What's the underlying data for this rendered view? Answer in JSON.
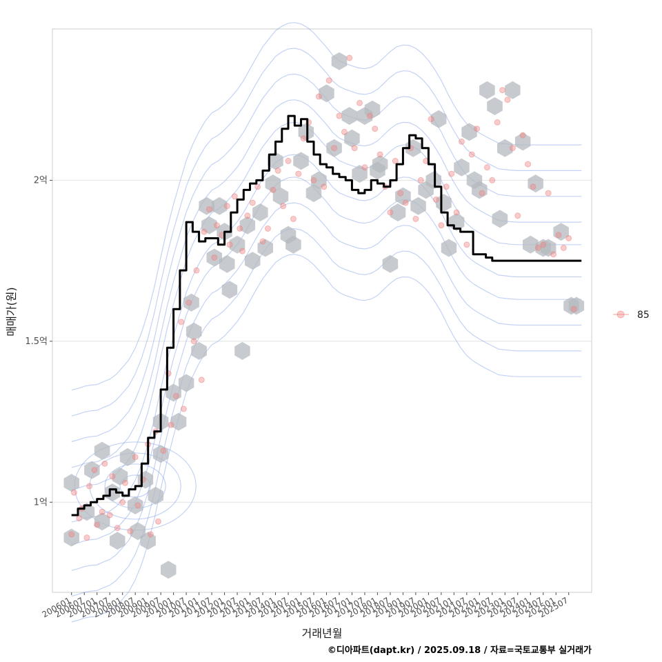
{
  "chart_data": {
    "type": "line",
    "title": "",
    "xlabel": "거래년월",
    "ylabel": "매매가(원)",
    "yunit": "억",
    "ylim": [
      0.72,
      2.47
    ],
    "yticks": [
      {
        "value": 1.0,
        "label": "1억"
      },
      {
        "value": 1.5,
        "label": "1.5억"
      },
      {
        "value": 2.0,
        "label": "2억"
      }
    ],
    "xlim": [
      2005.25,
      2026.4
    ],
    "xticks": [
      "200601",
      "200607",
      "200701",
      "200707",
      "200801",
      "200807",
      "200901",
      "200907",
      "201001",
      "201007",
      "201101",
      "201107",
      "201201",
      "201207",
      "201301",
      "201307",
      "201401",
      "201407",
      "201501",
      "201507",
      "201601",
      "201607",
      "201701",
      "201707",
      "201801",
      "201807",
      "201901",
      "201907",
      "202001",
      "202007",
      "202101",
      "202107",
      "202201",
      "202207",
      "202301",
      "202307",
      "202401",
      "202407",
      "202501",
      "202507"
    ],
    "legend": {
      "position": "right",
      "entries": [
        {
          "label": "85",
          "color": "#f08080"
        }
      ]
    },
    "caption": "©디아파트(dapt.kr) / 2025.09.18 / 자료=국토교통부 실거래가",
    "trend": {
      "name": "moving average",
      "x": [
        2006.0,
        2006.25,
        2006.5,
        2006.75,
        2007.0,
        2007.25,
        2007.5,
        2007.75,
        2008.0,
        2008.25,
        2008.5,
        2008.75,
        2009.0,
        2009.25,
        2009.5,
        2009.75,
        2010.0,
        2010.25,
        2010.5,
        2010.75,
        2011.0,
        2011.25,
        2011.5,
        2011.75,
        2012.0,
        2012.25,
        2012.5,
        2012.75,
        2013.0,
        2013.25,
        2013.5,
        2013.75,
        2014.0,
        2014.25,
        2014.5,
        2014.75,
        2015.0,
        2015.25,
        2015.5,
        2015.75,
        2016.0,
        2016.25,
        2016.5,
        2016.75,
        2017.0,
        2017.25,
        2017.5,
        2017.75,
        2018.0,
        2018.25,
        2018.5,
        2018.75,
        2019.0,
        2019.25,
        2019.5,
        2019.75,
        2020.0,
        2020.25,
        2020.5,
        2020.75,
        2021.0,
        2021.25,
        2021.5,
        2021.75,
        2022.0,
        2022.25,
        2022.5,
        2022.75,
        2023.0,
        2023.25,
        2023.5,
        2023.75,
        2024.0,
        2024.25,
        2024.5,
        2024.75,
        2025.0,
        2025.25,
        2025.5,
        2025.75,
        2026.0
      ],
      "y": [
        0.96,
        0.98,
        0.99,
        1.0,
        1.01,
        1.02,
        1.04,
        1.03,
        1.02,
        1.04,
        1.05,
        1.12,
        1.2,
        1.22,
        1.35,
        1.48,
        1.6,
        1.72,
        1.87,
        1.84,
        1.81,
        1.82,
        1.82,
        1.8,
        1.84,
        1.9,
        1.94,
        1.97,
        1.99,
        2.0,
        2.03,
        2.08,
        2.12,
        2.16,
        2.2,
        2.17,
        2.19,
        2.12,
        2.08,
        2.05,
        2.04,
        2.02,
        2.01,
        2.0,
        1.97,
        1.96,
        1.97,
        2.0,
        1.99,
        1.98,
        2.0,
        2.05,
        2.1,
        2.14,
        2.13,
        2.1,
        2.05,
        1.98,
        1.9,
        1.86,
        1.85,
        1.84,
        1.84,
        1.77,
        1.77,
        1.76,
        1.75,
        1.75,
        1.75,
        1.75,
        1.75,
        1.75,
        1.75,
        1.75,
        1.75,
        1.75,
        1.75,
        1.75,
        1.75,
        1.75,
        1.75
      ]
    },
    "points": {
      "series": "85",
      "x": [
        2006.0,
        2006.1,
        2006.3,
        2006.4,
        2006.6,
        2006.7,
        2006.9,
        2007.0,
        2007.2,
        2007.3,
        2007.5,
        2007.6,
        2007.8,
        2008.0,
        2008.1,
        2008.3,
        2008.5,
        2008.6,
        2008.8,
        2009.0,
        2009.1,
        2009.3,
        2009.4,
        2009.6,
        2009.8,
        2009.9,
        2010.1,
        2010.3,
        2010.4,
        2010.6,
        2010.8,
        2010.9,
        2011.1,
        2011.2,
        2011.4,
        2011.6,
        2011.7,
        2011.9,
        2012.1,
        2012.2,
        2012.4,
        2012.6,
        2012.7,
        2012.9,
        2013.1,
        2013.3,
        2013.5,
        2013.7,
        2013.9,
        2014.1,
        2014.3,
        2014.5,
        2014.7,
        2014.9,
        2015.1,
        2015.3,
        2015.5,
        2015.7,
        2015.9,
        2016.1,
        2016.3,
        2016.5,
        2016.7,
        2016.9,
        2017.1,
        2017.3,
        2017.5,
        2017.7,
        2017.9,
        2018.1,
        2018.3,
        2018.5,
        2018.7,
        2018.9,
        2019.1,
        2019.3,
        2019.5,
        2019.7,
        2019.9,
        2020.1,
        2020.3,
        2020.5,
        2020.7,
        2020.9,
        2021.1,
        2021.3,
        2021.5,
        2021.7,
        2021.9,
        2022.1,
        2022.3,
        2022.5,
        2022.7,
        2022.9,
        2023.1,
        2023.3,
        2023.5,
        2023.7,
        2023.9,
        2024.1,
        2024.3,
        2024.5,
        2024.7,
        2024.9,
        2025.1,
        2025.3,
        2025.5,
        2025.7
      ],
      "y": [
        0.9,
        1.03,
        0.95,
        0.98,
        0.89,
        1.05,
        1.1,
        0.93,
        0.97,
        1.12,
        0.96,
        1.08,
        0.92,
        1.0,
        1.06,
        0.91,
        1.14,
        0.99,
        1.07,
        1.18,
        0.9,
        1.22,
        0.94,
        1.16,
        1.4,
        1.24,
        1.33,
        1.56,
        1.29,
        1.62,
        1.5,
        1.72,
        1.38,
        1.84,
        1.91,
        1.76,
        1.86,
        1.83,
        1.92,
        1.8,
        1.95,
        1.85,
        1.78,
        1.89,
        1.93,
        1.98,
        1.81,
        1.85,
        1.97,
        2.03,
        1.92,
        2.06,
        1.88,
        2.02,
        2.13,
        2.18,
        2.0,
        2.26,
        1.98,
        2.31,
        2.1,
        2.2,
        2.15,
        2.38,
        2.1,
        2.24,
        2.04,
        2.2,
        2.16,
        2.08,
        1.98,
        1.9,
        2.06,
        1.96,
        1.93,
        2.1,
        1.88,
        2.0,
        2.06,
        2.19,
        1.94,
        1.86,
        1.98,
        2.02,
        1.9,
        2.12,
        1.8,
        2.08,
        2.16,
        1.96,
        2.04,
        2.0,
        2.18,
        2.28,
        2.25,
        2.1,
        1.89,
        2.14,
        2.05,
        1.98,
        1.79,
        1.8,
        1.96,
        1.77,
        1.83,
        1.79,
        1.82,
        1.6
      ]
    },
    "hexbins": {
      "x": [
        2006.0,
        2006.0,
        2006.6,
        2006.8,
        2007.2,
        2007.2,
        2007.6,
        2007.8,
        2007.9,
        2008.2,
        2008.5,
        2008.6,
        2008.9,
        2009.0,
        2009.3,
        2009.5,
        2009.5,
        2009.8,
        2010.0,
        2010.2,
        2010.5,
        2010.7,
        2010.8,
        2011.0,
        2011.3,
        2011.4,
        2011.6,
        2011.8,
        2012.0,
        2012.1,
        2012.2,
        2012.5,
        2012.7,
        2012.9,
        2013.1,
        2013.4,
        2013.6,
        2013.9,
        2014.0,
        2014.2,
        2014.5,
        2014.7,
        2015.0,
        2015.2,
        2015.5,
        2015.7,
        2016.0,
        2016.3,
        2016.5,
        2016.9,
        2017.0,
        2017.3,
        2017.5,
        2017.8,
        2018.0,
        2018.1,
        2018.5,
        2018.8,
        2019.0,
        2019.4,
        2019.6,
        2019.9,
        2020.2,
        2020.4,
        2020.6,
        2020.8,
        2021.1,
        2021.3,
        2021.6,
        2021.8,
        2022.0,
        2022.3,
        2022.6,
        2022.8,
        2023.0,
        2023.3,
        2023.7,
        2024.0,
        2024.2,
        2024.5,
        2024.7,
        2025.2,
        2025.6,
        2025.8
      ],
      "y": [
        0.89,
        1.06,
        0.97,
        1.1,
        0.94,
        1.16,
        1.03,
        0.88,
        1.08,
        1.14,
        0.99,
        0.91,
        1.07,
        0.88,
        1.02,
        1.15,
        1.25,
        0.79,
        1.34,
        1.25,
        1.37,
        1.62,
        1.53,
        1.47,
        1.92,
        1.86,
        1.76,
        1.92,
        1.84,
        1.74,
        1.66,
        1.8,
        1.47,
        1.86,
        1.75,
        1.9,
        1.79,
        1.99,
        2.06,
        1.95,
        1.83,
        1.8,
        2.06,
        2.15,
        1.96,
        2.0,
        2.27,
        2.1,
        2.37,
        2.2,
        2.13,
        2.02,
        2.2,
        2.22,
        2.03,
        2.05,
        1.74,
        1.9,
        1.95,
        2.1,
        1.92,
        1.97,
        2.0,
        2.19,
        1.93,
        1.79,
        1.87,
        2.04,
        2.15,
        2.0,
        1.97,
        2.28,
        2.23,
        1.88,
        2.1,
        2.28,
        2.12,
        1.8,
        1.99,
        1.79,
        1.79,
        1.84,
        1.61,
        1.61
      ]
    },
    "density_center": {
      "x": 2008.5,
      "y": 1.05
    },
    "colors": {
      "trend": "#000000",
      "point": "#f08080",
      "hex": "#b4babf",
      "contour": "#7b9be6",
      "grid": "#e2e2e2",
      "panel_border": "#cccccc"
    }
  }
}
